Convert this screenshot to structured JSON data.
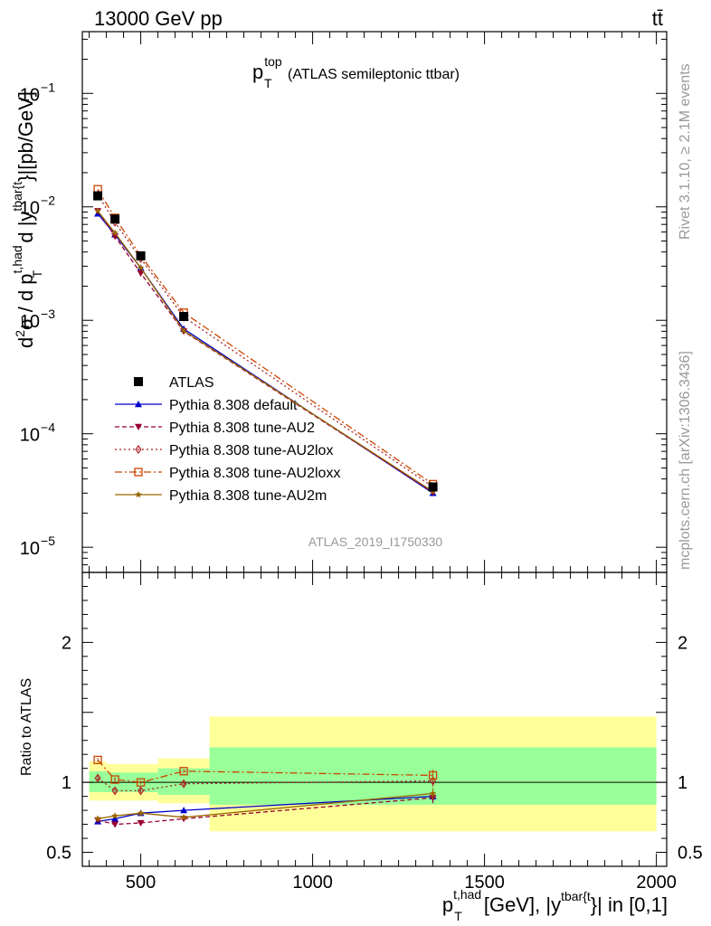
{
  "header": {
    "left": "13000 GeV pp",
    "right": "tt̄"
  },
  "side": {
    "rivet": "Rivet 3.1.10, ≥ 2.1M events",
    "mcplots": "mcplots.cern.ch [arXiv:1306.3436]"
  },
  "plot_title": {
    "main": "p",
    "sup": "top",
    "sub": "T",
    "rest": "(ATLAS semileptonic ttbar)"
  },
  "watermark": "ATLAS_2019_I1750330",
  "ylabel_top": {
    "a": "d",
    "b": "2",
    "c": "σ  /  d p",
    "d": "t,had",
    "e": "T",
    "f": " d |y",
    "g": "tbar{t",
    "h": "}|[pb/GeV]"
  },
  "ylabel_bottom": "Ratio to ATLAS",
  "xlabel": {
    "a": "p",
    "b": "t,had",
    "c": "T",
    "d": " [GeV], |y",
    "e": "tbar{t",
    "f": "}| in [0,1]"
  },
  "colors": {
    "data": "#000000",
    "default": "#0000cc",
    "au2": "#990033",
    "au2lox": "#aa2222",
    "au2loxx": "#cc4400",
    "au2m": "#996600",
    "band_inner": "#99ff99",
    "band_outer": "#ffff99"
  },
  "chart_data": [
    {
      "type": "line",
      "panel": "main",
      "yscale": "log",
      "ylim": [
        6e-06,
        0.35
      ],
      "xlim": [
        330,
        2030
      ],
      "yticks": [
        {
          "v": 1e-05,
          "m": "10",
          "e": "−5"
        },
        {
          "v": 0.0001,
          "m": "10",
          "e": "−4"
        },
        {
          "v": 0.001,
          "m": "10",
          "e": "−3"
        },
        {
          "v": 0.01,
          "m": "10",
          "e": "−2"
        },
        {
          "v": 0.1,
          "m": "10",
          "e": "−1"
        }
      ],
      "x": [
        375,
        425,
        500,
        625,
        1350
      ],
      "series": [
        {
          "key": "data",
          "name": "ATLAS",
          "marker": "square",
          "dash": "",
          "values": [
            0.0125,
            0.0078,
            0.0037,
            0.00108,
            3.4e-05
          ]
        },
        {
          "key": "default",
          "name": "Pythia 8.308 default",
          "marker": "triangle-up",
          "dash": "",
          "values": [
            0.0087,
            0.0057,
            0.0029,
            0.00084,
            3e-05
          ]
        },
        {
          "key": "au2",
          "name": "Pythia 8.308 tune-AU2",
          "marker": "triangle-down",
          "dash": "5,3",
          "values": [
            0.0092,
            0.0055,
            0.0026,
            0.0008,
            3.05e-05
          ]
        },
        {
          "key": "au2lox",
          "name": "Pythia 8.308 tune-AU2lox",
          "marker": "diamond",
          "dash": "2,3",
          "values": [
            0.0128,
            0.0073,
            0.0035,
            0.00107,
            3.4e-05
          ]
        },
        {
          "key": "au2loxx",
          "name": "Pythia 8.308 tune-AU2loxx",
          "marker": "open-square",
          "dash": "8,3,2,3",
          "values": [
            0.0143,
            0.008,
            0.0037,
            0.00117,
            3.6e-05
          ]
        },
        {
          "key": "au2m",
          "name": "Pythia 8.308 tune-AU2m",
          "marker": "star",
          "dash": "",
          "values": [
            0.0092,
            0.0059,
            0.0029,
            0.00081,
            3.1e-05
          ]
        }
      ]
    },
    {
      "type": "line",
      "panel": "ratio",
      "ylim": [
        0.4,
        2.5
      ],
      "xlim": [
        330,
        2030
      ],
      "xticks": [
        500,
        1000,
        1500,
        2000
      ],
      "yticks": [
        0.5,
        1,
        2
      ],
      "bands": [
        {
          "x0": 350,
          "x1": 400,
          "inner": [
            0.93,
            1.08
          ],
          "outer": [
            0.87,
            1.15
          ]
        },
        {
          "x0": 400,
          "x1": 450,
          "inner": [
            0.93,
            1.07
          ],
          "outer": [
            0.87,
            1.13
          ]
        },
        {
          "x0": 450,
          "x1": 550,
          "inner": [
            0.93,
            1.07
          ],
          "outer": [
            0.87,
            1.13
          ]
        },
        {
          "x0": 550,
          "x1": 700,
          "inner": [
            0.91,
            1.1
          ],
          "outer": [
            0.85,
            1.17
          ]
        },
        {
          "x0": 700,
          "x1": 2000,
          "inner": [
            0.84,
            1.25
          ],
          "outer": [
            0.65,
            1.47
          ]
        }
      ],
      "x": [
        375,
        425,
        500,
        625,
        1350
      ],
      "series": [
        {
          "key": "default",
          "values": [
            0.72,
            0.74,
            0.78,
            0.8,
            0.9
          ]
        },
        {
          "key": "au2",
          "values": [
            0.73,
            0.7,
            0.71,
            0.74,
            0.89
          ]
        },
        {
          "key": "au2lox",
          "values": [
            1.03,
            0.94,
            0.94,
            0.99,
            1.01
          ]
        },
        {
          "key": "au2loxx",
          "values": [
            1.16,
            1.02,
            1.0,
            1.08,
            1.05
          ]
        },
        {
          "key": "au2m",
          "values": [
            0.74,
            0.76,
            0.78,
            0.75,
            0.92
          ]
        }
      ]
    }
  ]
}
